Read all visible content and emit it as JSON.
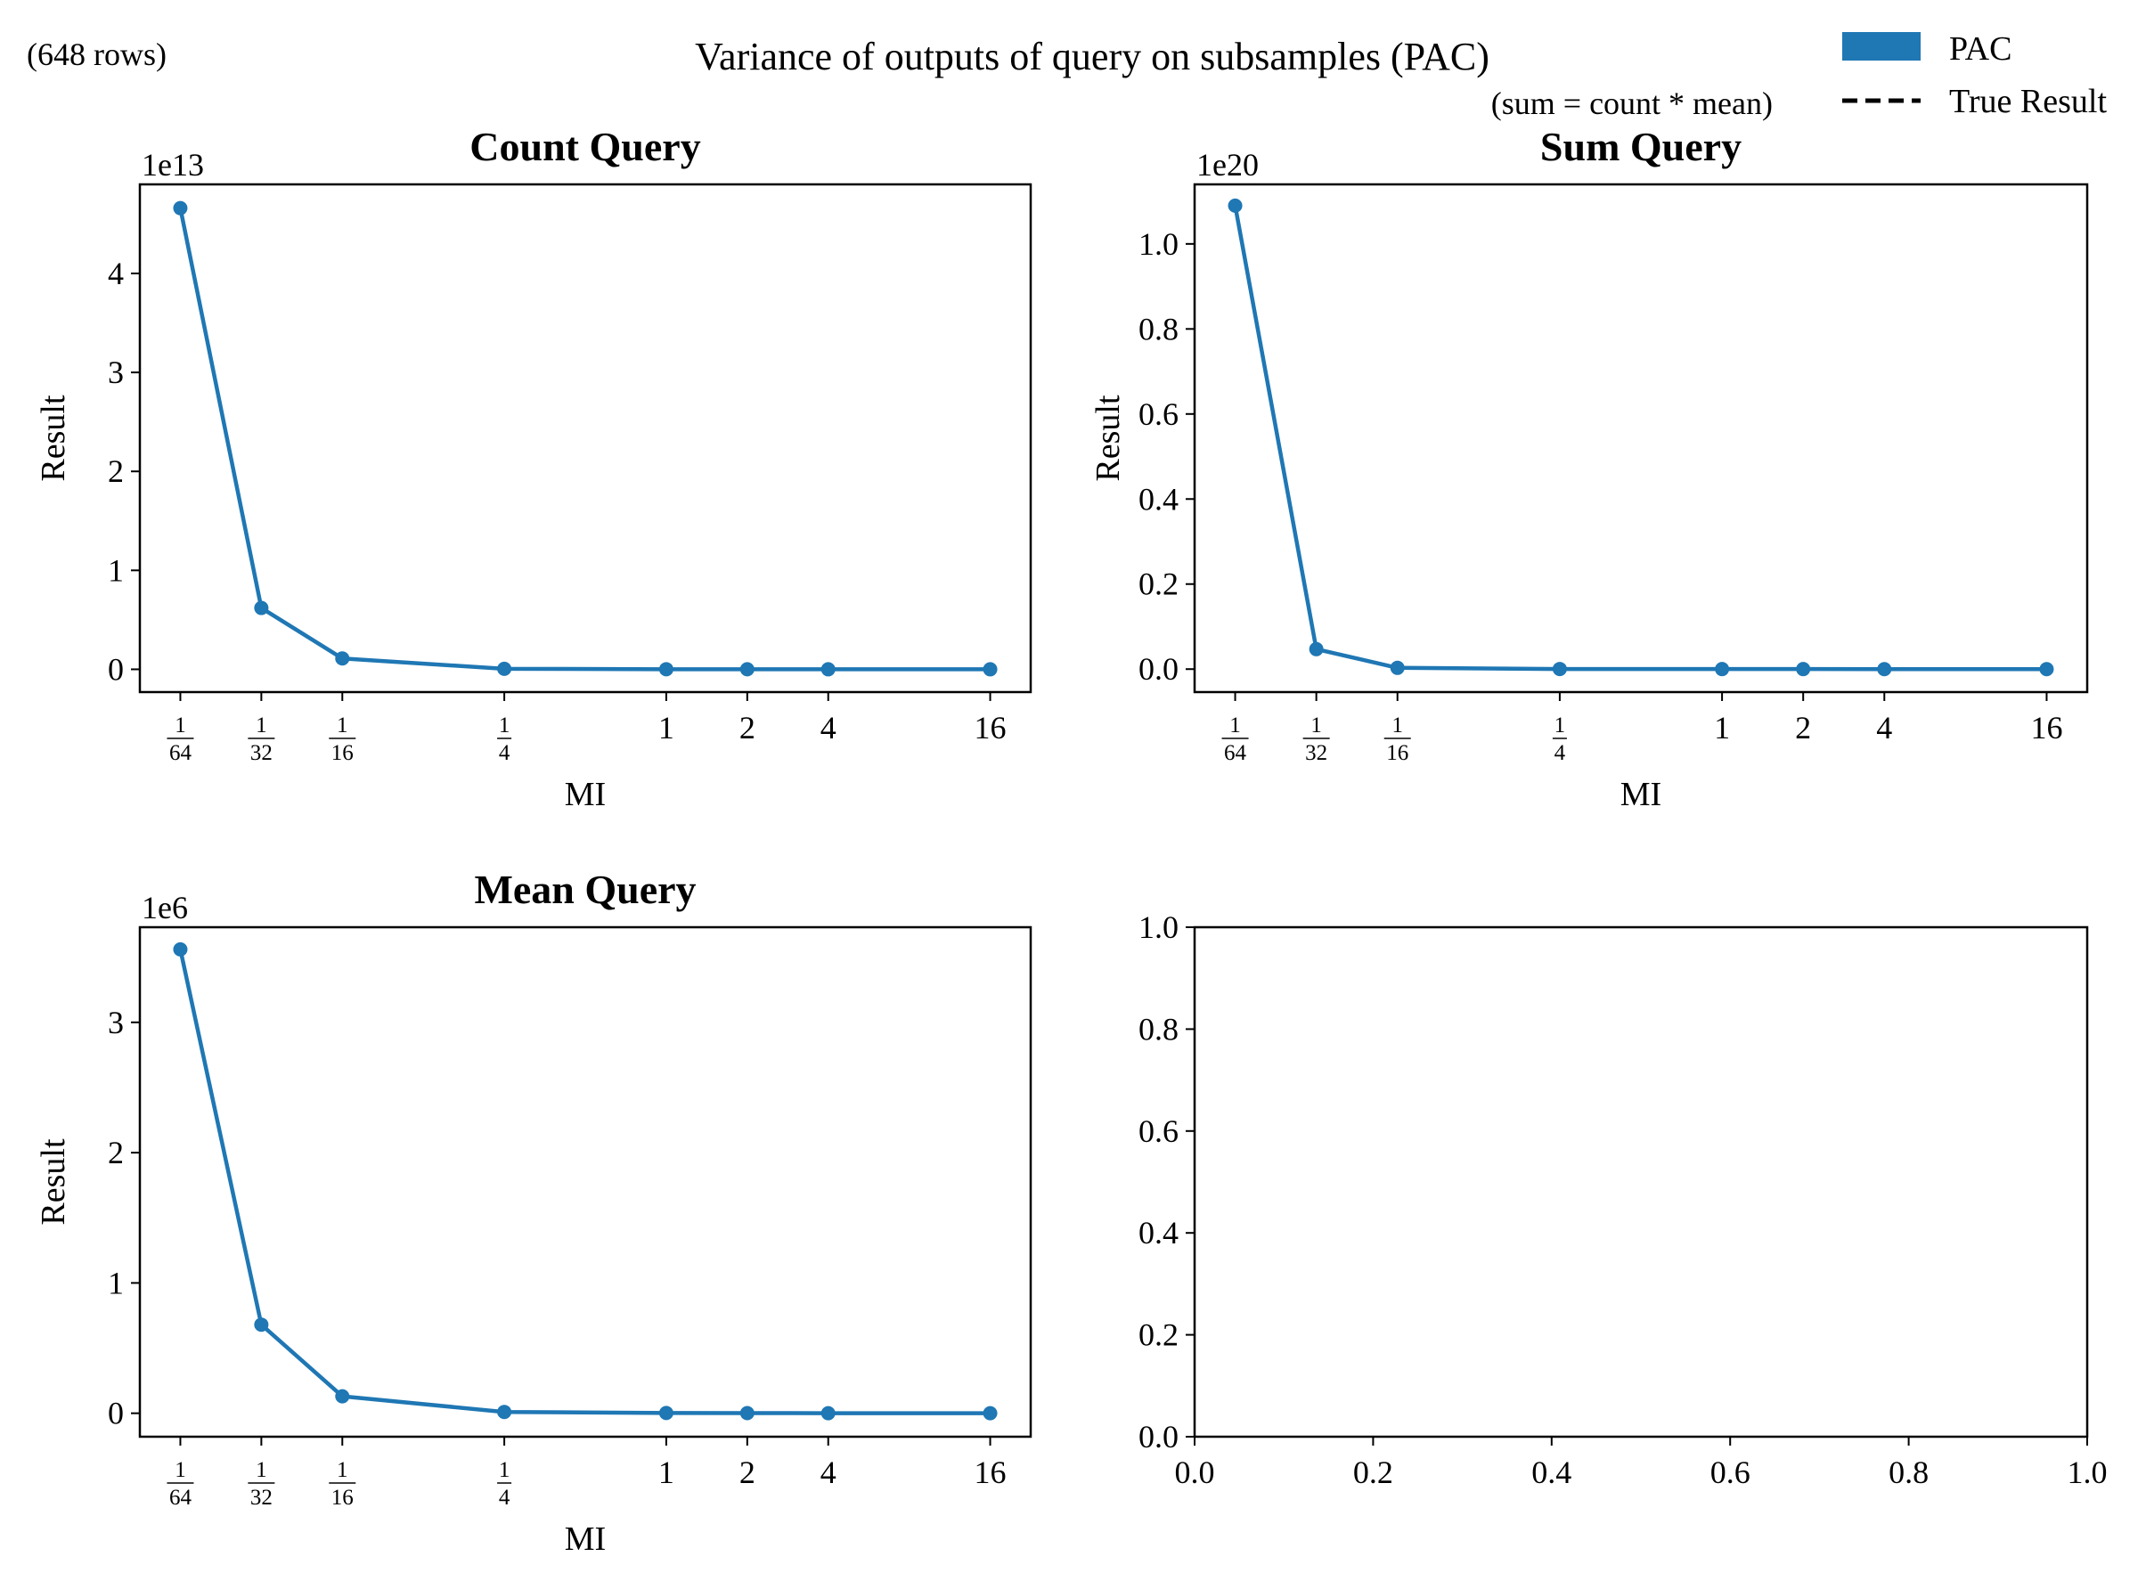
{
  "figure": {
    "title": "Variance of outputs of query on subsamples (PAC)",
    "row_count": "(648 rows)",
    "note": "(sum = count * mean)"
  },
  "legend": {
    "placement": "top-right",
    "items": [
      {
        "label": "PAC",
        "kind": "patch",
        "color": "#1f77b4"
      },
      {
        "label": "True Result",
        "kind": "dashed-line",
        "color": "#000000"
      }
    ]
  },
  "chart_data": [
    {
      "type": "line",
      "title": "Count Query",
      "xlabel": "MI",
      "ylabel": "Result",
      "x_scale": "log2",
      "x": [
        0.015625,
        0.03125,
        0.0625,
        0.25,
        1,
        2,
        4,
        16
      ],
      "x_tick_labels": [
        "1/64",
        "1/32",
        "1/16",
        "1/4",
        "1",
        "2",
        "4",
        "16"
      ],
      "y_offset_label": "1e13",
      "y_ticks": [
        "0",
        "1",
        "2",
        "3",
        "4"
      ],
      "ylim": [
        -0.23,
        4.9
      ],
      "series": [
        {
          "color": "#1f77b4",
          "values": [
            4.66,
            0.62,
            0.11,
            0.005,
            0.001,
            0.0005,
            0.0002,
            0.0001
          ]
        }
      ],
      "grid": false
    },
    {
      "type": "line",
      "title": "Sum Query",
      "xlabel": "MI",
      "ylabel": "Result",
      "x_scale": "log2",
      "x": [
        0.015625,
        0.03125,
        0.0625,
        0.25,
        1,
        2,
        4,
        16
      ],
      "x_tick_labels": [
        "1/64",
        "1/32",
        "1/16",
        "1/4",
        "1",
        "2",
        "4",
        "16"
      ],
      "y_offset_label": "1e20",
      "y_ticks": [
        "0.0",
        "0.2",
        "0.4",
        "0.6",
        "0.8",
        "1.0"
      ],
      "ylim": [
        -0.054,
        1.14
      ],
      "series": [
        {
          "color": "#1f77b4",
          "values": [
            1.09,
            0.047,
            0.003,
            0.0003,
            0.0001,
            0.0001,
            0.0,
            0.0
          ]
        }
      ],
      "grid": false
    },
    {
      "type": "line",
      "title": "Mean Query",
      "xlabel": "MI",
      "ylabel": "Result",
      "x_scale": "log2",
      "x": [
        0.015625,
        0.03125,
        0.0625,
        0.25,
        1,
        2,
        4,
        16
      ],
      "x_tick_labels": [
        "1/64",
        "1/32",
        "1/16",
        "1/4",
        "1",
        "2",
        "4",
        "16"
      ],
      "y_offset_label": "1e6",
      "y_ticks": [
        "0",
        "1",
        "2",
        "3"
      ],
      "ylim": [
        -0.18,
        3.73
      ],
      "series": [
        {
          "color": "#1f77b4",
          "values": [
            3.56,
            0.68,
            0.13,
            0.01,
            0.002,
            0.001,
            0.0005,
            0.0002
          ]
        }
      ],
      "grid": false
    },
    {
      "type": "line",
      "title": "",
      "xlabel": "",
      "ylabel": "",
      "x_scale": "linear",
      "x_tick_labels": [
        "0.0",
        "0.2",
        "0.4",
        "0.6",
        "0.8",
        "1.0"
      ],
      "y_ticks": [
        "0.0",
        "0.2",
        "0.4",
        "0.6",
        "0.8",
        "1.0"
      ],
      "xlim": [
        0,
        1
      ],
      "ylim": [
        0,
        1
      ],
      "series": [],
      "grid": false
    }
  ]
}
